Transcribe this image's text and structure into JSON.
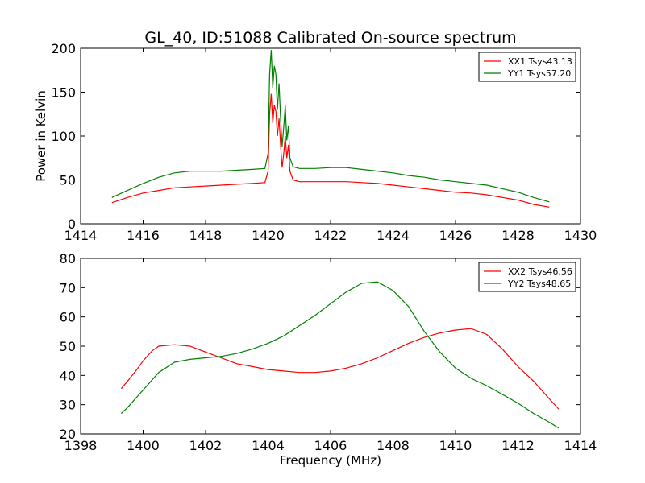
{
  "figure": {
    "title": "GL_40, ID:51088 Calibrated On-source spectrum",
    "xlabel": "Frequency (MHz)",
    "ylabel": "Power in Kelvin"
  },
  "chart_data": [
    {
      "type": "line",
      "title": "GL_40, ID:51088 Calibrated On-source spectrum",
      "xlabel": "",
      "ylabel": "Power in Kelvin",
      "xlim": [
        1414,
        1430
      ],
      "ylim": [
        0,
        200
      ],
      "xticks": [
        "1414",
        "1416",
        "1418",
        "1420",
        "1422",
        "1424",
        "1426",
        "1428",
        "1430"
      ],
      "yticks": [
        "0",
        "50",
        "100",
        "150",
        "200"
      ],
      "legend_position": "top-right",
      "grid": false,
      "series": [
        {
          "name": "XX1 Tsys43.13",
          "color": "#ff0000",
          "x": [
            1415.0,
            1415.5,
            1416.0,
            1416.5,
            1417.0,
            1417.5,
            1418.0,
            1418.5,
            1419.0,
            1419.5,
            1419.9,
            1420.0,
            1420.05,
            1420.1,
            1420.15,
            1420.2,
            1420.25,
            1420.3,
            1420.35,
            1420.4,
            1420.45,
            1420.5,
            1420.55,
            1420.6,
            1420.65,
            1420.7,
            1420.8,
            1421.0,
            1421.5,
            1422.0,
            1422.5,
            1423.0,
            1423.5,
            1424.0,
            1424.5,
            1425.0,
            1425.5,
            1426.0,
            1426.5,
            1427.0,
            1427.5,
            1428.0,
            1428.5,
            1429.0
          ],
          "y": [
            24,
            30,
            35,
            38,
            41,
            42,
            43,
            44,
            45,
            46,
            47,
            60,
            125,
            148,
            115,
            135,
            128,
            100,
            120,
            90,
            64,
            80,
            100,
            75,
            90,
            60,
            50,
            48,
            48,
            48,
            48,
            47,
            46,
            44,
            42,
            40,
            38,
            36,
            35,
            33,
            30,
            27,
            22,
            19
          ]
        },
        {
          "name": "YY1 Tsys57.20",
          "color": "#008000",
          "x": [
            1415.0,
            1415.5,
            1416.0,
            1416.5,
            1417.0,
            1417.5,
            1418.0,
            1418.5,
            1419.0,
            1419.5,
            1419.9,
            1420.0,
            1420.05,
            1420.1,
            1420.15,
            1420.2,
            1420.25,
            1420.3,
            1420.35,
            1420.4,
            1420.45,
            1420.5,
            1420.55,
            1420.6,
            1420.65,
            1420.7,
            1420.8,
            1421.0,
            1421.5,
            1422.0,
            1422.5,
            1423.0,
            1423.5,
            1424.0,
            1424.5,
            1425.0,
            1425.5,
            1426.0,
            1426.5,
            1427.0,
            1427.5,
            1428.0,
            1428.5,
            1429.0
          ],
          "y": [
            30,
            38,
            46,
            53,
            58,
            60,
            60,
            60,
            61,
            62,
            63,
            80,
            170,
            198,
            155,
            180,
            170,
            130,
            160,
            120,
            88,
            110,
            135,
            95,
            112,
            75,
            65,
            63,
            63,
            64,
            64,
            62,
            60,
            58,
            55,
            53,
            50,
            48,
            46,
            44,
            40,
            36,
            30,
            25
          ]
        }
      ]
    },
    {
      "type": "line",
      "title": "",
      "xlabel": "Frequency (MHz)",
      "ylabel": "",
      "xlim": [
        1398,
        1414
      ],
      "ylim": [
        20,
        80
      ],
      "xticks": [
        "1398",
        "1400",
        "1402",
        "1404",
        "1406",
        "1408",
        "1410",
        "1412",
        "1414"
      ],
      "yticks": [
        "20",
        "30",
        "40",
        "50",
        "60",
        "70",
        "80"
      ],
      "legend_position": "top-right",
      "grid": false,
      "series": [
        {
          "name": "XX2 Tsys46.56",
          "color": "#ff0000",
          "x": [
            1399.3,
            1399.5,
            1399.8,
            1400.0,
            1400.3,
            1400.5,
            1401.0,
            1401.5,
            1402.0,
            1402.5,
            1403.0,
            1403.5,
            1404.0,
            1404.5,
            1405.0,
            1405.5,
            1406.0,
            1406.5,
            1407.0,
            1407.5,
            1408.0,
            1408.5,
            1409.0,
            1409.5,
            1410.0,
            1410.5,
            1411.0,
            1411.5,
            1412.0,
            1412.5,
            1413.0,
            1413.3
          ],
          "y": [
            35.5,
            38,
            42,
            45,
            48.5,
            50,
            50.5,
            50,
            48,
            46,
            44,
            43,
            42,
            41.5,
            41,
            41,
            41.5,
            42.5,
            44,
            46,
            48.5,
            51,
            53,
            54.5,
            55.5,
            56,
            54,
            49,
            43,
            38,
            32,
            28.5
          ]
        },
        {
          "name": "YY2 Tsys48.65",
          "color": "#008000",
          "x": [
            1399.3,
            1399.5,
            1400.0,
            1400.5,
            1401.0,
            1401.5,
            1402.0,
            1402.5,
            1403.0,
            1403.5,
            1404.0,
            1404.5,
            1405.0,
            1405.5,
            1406.0,
            1406.5,
            1407.0,
            1407.5,
            1408.0,
            1408.5,
            1409.0,
            1409.5,
            1410.0,
            1410.5,
            1411.0,
            1411.5,
            1412.0,
            1412.5,
            1413.0,
            1413.3
          ],
          "y": [
            27,
            29,
            35,
            41,
            44.5,
            45.5,
            46,
            46.5,
            47.5,
            49,
            51,
            53.5,
            57,
            60.5,
            64.5,
            68.5,
            71.5,
            72,
            69,
            63.5,
            55,
            48,
            42.5,
            39,
            36.5,
            33.5,
            30.5,
            27,
            24,
            22
          ]
        }
      ]
    }
  ]
}
